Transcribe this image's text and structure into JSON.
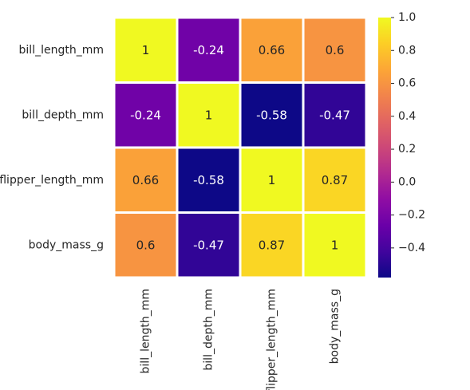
{
  "chart_data": {
    "type": "heatmap",
    "title": "",
    "xlabel": "",
    "ylabel": "",
    "rows": [
      "bill_length_mm",
      "bill_depth_mm",
      "flipper_length_mm",
      "body_mass_g"
    ],
    "columns": [
      "bill_length_mm",
      "bill_depth_mm",
      "flipper_length_mm",
      "body_mass_g"
    ],
    "values": [
      [
        1,
        -0.24,
        0.66,
        0.6
      ],
      [
        -0.24,
        1,
        -0.58,
        -0.47
      ],
      [
        0.66,
        -0.58,
        1,
        0.87
      ],
      [
        0.6,
        -0.47,
        0.87,
        1
      ]
    ],
    "annotations": [
      [
        "1",
        "-0.24",
        "0.66",
        "0.6"
      ],
      [
        "-0.24",
        "1",
        "-0.58",
        "-0.47"
      ],
      [
        "0.66",
        "-0.58",
        "1",
        "0.87"
      ],
      [
        "0.6",
        "-0.47",
        "0.87",
        "1"
      ]
    ],
    "colormap": "plasma",
    "value_range": [
      -0.58,
      1.0
    ],
    "colorbar": {
      "ticks": [
        1.0,
        0.8,
        0.6,
        0.4,
        0.2,
        0.0,
        -0.2,
        -0.4
      ],
      "tick_labels": [
        "1.0",
        "0.8",
        "0.6",
        "0.4",
        "0.2",
        "0.0",
        "−0.2",
        "−0.4"
      ]
    },
    "cell_border_color": "#ffffff",
    "grid": false,
    "legend": "colorbar-right"
  }
}
